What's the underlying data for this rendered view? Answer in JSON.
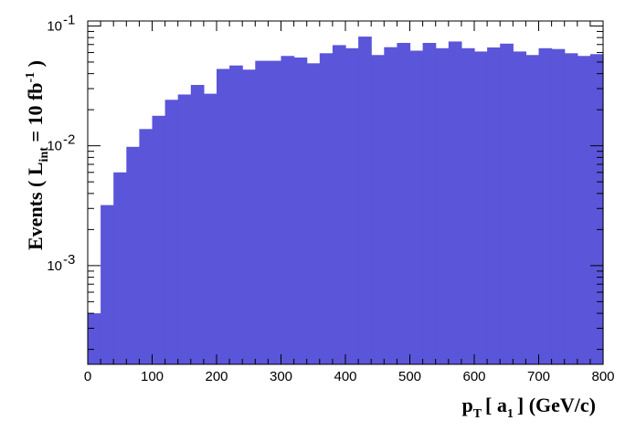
{
  "chart_data": {
    "type": "bar",
    "style": "histogram",
    "y_scale": "log",
    "bar_color": "#5a55d9",
    "bin_edges_start": 0,
    "bin_width": 20,
    "x_range": [
      0,
      800
    ],
    "y_range": [
      0.00015,
      0.11
    ],
    "x_ticks": [
      "0",
      "100",
      "200",
      "300",
      "400",
      "500",
      "600",
      "700",
      "800"
    ],
    "y_tick_base": "10",
    "y_ticks": [
      {
        "value": 0.001,
        "exponent": "-3"
      },
      {
        "value": 0.01,
        "exponent": "-2"
      },
      {
        "value": 0.1,
        "exponent": "-1"
      }
    ],
    "values": [
      0.0004,
      0.0032,
      0.006,
      0.0098,
      0.0138,
      0.0178,
      0.0242,
      0.0268,
      0.0322,
      0.0272,
      0.0438,
      0.0468,
      0.0432,
      0.0512,
      0.0512,
      0.0562,
      0.0545,
      0.0488,
      0.0592,
      0.0692,
      0.0652,
      0.0815,
      0.0572,
      0.0665,
      0.0722,
      0.0622,
      0.0722,
      0.0652,
      0.0742,
      0.0652,
      0.0612,
      0.0662,
      0.0712,
      0.0612,
      0.0572,
      0.0652,
      0.0642,
      0.0592,
      0.0562,
      0.0582
    ],
    "xlabel": {
      "p": "p",
      "sub_T": "T",
      "open": "[ a",
      "sub_1": "1",
      "close": "] (GeV/c)"
    },
    "ylabel": {
      "prefix": "Events  ( L",
      "sub_int": "int",
      "middle": " = 10 fb",
      "sup": "-1",
      "suffix": " )"
    }
  }
}
